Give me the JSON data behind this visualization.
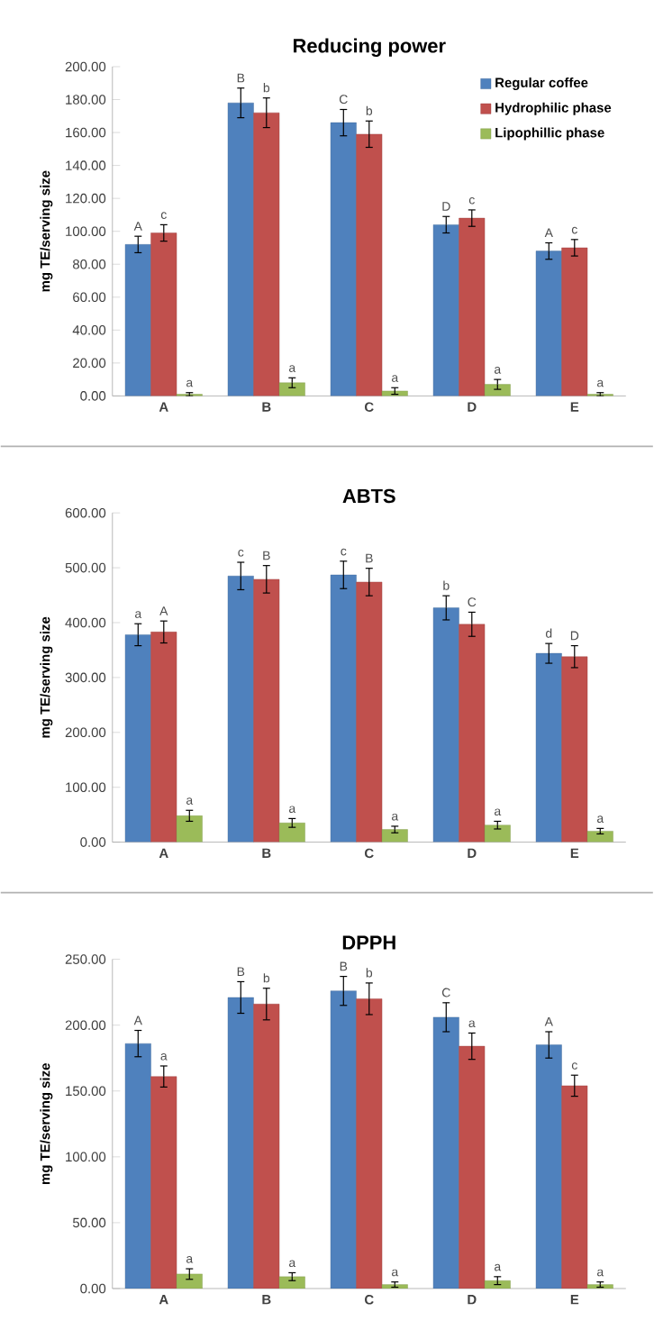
{
  "chart_data": [
    {
      "type": "bar",
      "title": "Reducing power",
      "ylabel": "mg TE/serving size",
      "categories": [
        "A",
        "B",
        "C",
        "D",
        "E"
      ],
      "ylim": [
        0,
        200
      ],
      "yticks": [
        {
          "value": 0,
          "label": "0.00"
        },
        {
          "value": 20,
          "label": "20.00"
        },
        {
          "value": 40,
          "label": "40.00"
        },
        {
          "value": 60,
          "label": "60.00"
        },
        {
          "value": 80,
          "label": "80.00"
        },
        {
          "value": 100,
          "label": "100.00"
        },
        {
          "value": 120,
          "label": "120.00"
        },
        {
          "value": 140,
          "label": "140.00"
        },
        {
          "value": 160,
          "label": "160.00"
        },
        {
          "value": 180,
          "label": "180.00"
        },
        {
          "value": 200,
          "label": "200.00"
        }
      ],
      "legend": "top right",
      "series": [
        {
          "name": "Regular coffee",
          "color": "#4f81bd",
          "values": [
            92,
            178,
            166,
            104,
            88
          ],
          "errors": [
            5,
            9,
            8,
            5,
            5
          ],
          "value_labels": [
            "A",
            "B",
            "C",
            "D",
            "A"
          ]
        },
        {
          "name": "Hydrophilic phase",
          "color": "#c0504d",
          "values": [
            99,
            172,
            159,
            108,
            90
          ],
          "errors": [
            5,
            9,
            8,
            5,
            5
          ],
          "value_labels": [
            "c",
            "b",
            "b",
            "c",
            "c"
          ]
        },
        {
          "name": "Lipophillic phase",
          "color": "#9bbb59",
          "values": [
            1,
            8,
            3,
            7,
            1
          ],
          "errors": [
            1,
            3,
            2,
            3,
            1
          ],
          "value_labels": [
            "a",
            "a",
            "a",
            "a",
            "a"
          ]
        }
      ]
    },
    {
      "type": "bar",
      "title": "ABTS",
      "ylabel": "mg TE/serving size",
      "categories": [
        "A",
        "B",
        "C",
        "D",
        "E"
      ],
      "ylim": [
        0,
        600
      ],
      "yticks": [
        {
          "value": 0,
          "label": "0.00"
        },
        {
          "value": 100,
          "label": "100.00"
        },
        {
          "value": 200,
          "label": "200.00"
        },
        {
          "value": 300,
          "label": "300.00"
        },
        {
          "value": 400,
          "label": "400.00"
        },
        {
          "value": 500,
          "label": "500.00"
        },
        {
          "value": 600,
          "label": "600.00"
        }
      ],
      "series": [
        {
          "color": "#4f81bd",
          "values": [
            378,
            485,
            487,
            427,
            344
          ],
          "errors": [
            20,
            25,
            25,
            22,
            18
          ],
          "value_labels": [
            "a",
            "c",
            "c",
            "b",
            "d"
          ]
        },
        {
          "color": "#c0504d",
          "values": [
            383,
            479,
            474,
            397,
            338
          ],
          "errors": [
            20,
            25,
            25,
            22,
            20
          ],
          "value_labels": [
            "A",
            "B",
            "B",
            "C",
            "D"
          ]
        },
        {
          "color": "#9bbb59",
          "values": [
            48,
            35,
            23,
            31,
            20
          ],
          "errors": [
            10,
            8,
            6,
            7,
            5
          ],
          "value_labels": [
            "a",
            "a",
            "a",
            "a",
            "a"
          ]
        }
      ]
    },
    {
      "type": "bar",
      "title": "DPPH",
      "ylabel": "mg TE/serving size",
      "categories": [
        "A",
        "B",
        "C",
        "D",
        "E"
      ],
      "ylim": [
        0,
        250
      ],
      "yticks": [
        {
          "value": 0,
          "label": "0.00"
        },
        {
          "value": 50,
          "label": "50.00"
        },
        {
          "value": 100,
          "label": "100.00"
        },
        {
          "value": 150,
          "label": "150.00"
        },
        {
          "value": 200,
          "label": "200.00"
        },
        {
          "value": 250,
          "label": "250.00"
        }
      ],
      "series": [
        {
          "color": "#4f81bd",
          "values": [
            186,
            221,
            226,
            206,
            185
          ],
          "errors": [
            10,
            12,
            11,
            11,
            10
          ],
          "value_labels": [
            "A",
            "B",
            "B",
            "C",
            "A"
          ]
        },
        {
          "color": "#c0504d",
          "values": [
            161,
            216,
            220,
            184,
            154
          ],
          "errors": [
            8,
            12,
            12,
            10,
            8
          ],
          "value_labels": [
            "a",
            "b",
            "b",
            "a",
            "c"
          ]
        },
        {
          "color": "#9bbb59",
          "values": [
            11,
            9,
            3,
            6,
            3
          ],
          "errors": [
            4,
            3,
            2,
            3,
            2
          ],
          "value_labels": [
            "a",
            "a",
            "a",
            "a",
            "a"
          ]
        }
      ]
    }
  ]
}
